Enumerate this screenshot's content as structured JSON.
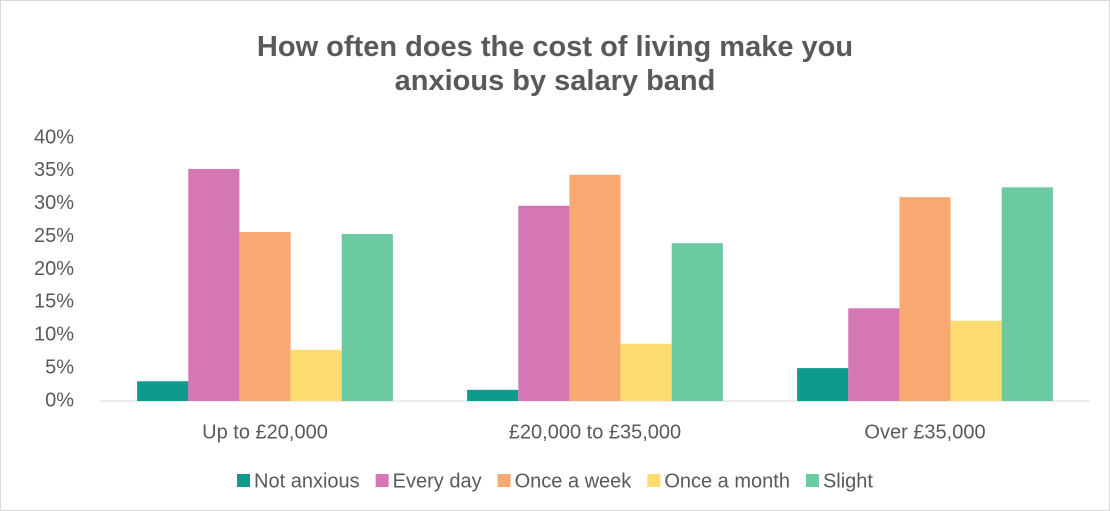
{
  "chart_data": {
    "type": "bar",
    "title": "How often does the cost of living make you anxious by salary band",
    "categories": [
      "Up to £20,000",
      "£20,000 to £35,000",
      "Over £35,000"
    ],
    "series": [
      {
        "name": "Not anxious",
        "color": "#0e9a8c",
        "values": [
          3.0,
          1.7,
          5.0
        ]
      },
      {
        "name": "Every day",
        "color": "#d677b5",
        "values": [
          35.3,
          29.7,
          14.1
        ]
      },
      {
        "name": "Once a week",
        "color": "#f8a870",
        "values": [
          25.7,
          34.4,
          31.0
        ]
      },
      {
        "name": "Once a month",
        "color": "#ffdc70",
        "values": [
          7.8,
          8.7,
          12.2
        ]
      },
      {
        "name": "Slight",
        "color": "#6ccaa2",
        "values": [
          25.4,
          24.0,
          32.5
        ]
      }
    ],
    "ylim": [
      0,
      40
    ],
    "yticks": [
      {
        "value": 0,
        "label": "0%"
      },
      {
        "value": 5,
        "label": "5%"
      },
      {
        "value": 10,
        "label": "10%"
      },
      {
        "value": 15,
        "label": "15%"
      },
      {
        "value": 20,
        "label": "20%"
      },
      {
        "value": 25,
        "label": "25%"
      },
      {
        "value": 30,
        "label": "30%"
      },
      {
        "value": 35,
        "label": "35%"
      },
      {
        "value": 40,
        "label": "40%"
      }
    ],
    "grid": false,
    "legend": "bottom"
  }
}
